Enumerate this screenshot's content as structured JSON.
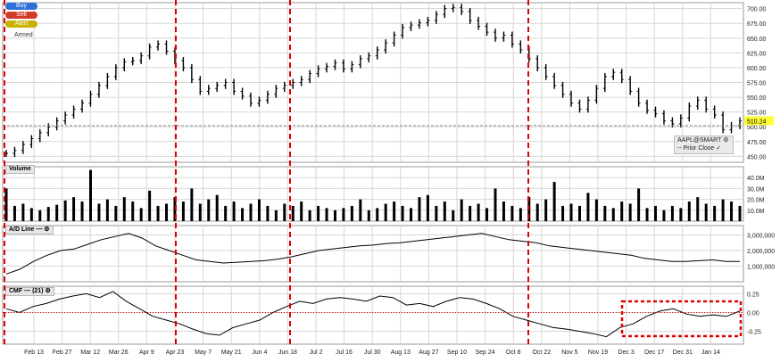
{
  "order_buttons": {
    "buy": "Buy",
    "sell": "Sell",
    "alert": "Alert",
    "armed": "Armed"
  },
  "colors": {
    "buy": "#2f6fd8",
    "sell": "#d23a2a",
    "alert": "#c9b200",
    "marker": "#e00000",
    "price_tag": "#ffff33"
  },
  "legend": {
    "symbol": "AAPL@SMART",
    "prior_close": "Prior Close"
  },
  "last_price_tag": "510.24",
  "chart_data": [
    {
      "type": "bar",
      "title": "",
      "symbol": "AAPL@SMART",
      "ylim": [
        440,
        710
      ],
      "yticks": [
        "700.00",
        "675.00",
        "650.00",
        "625.00",
        "600.00",
        "575.00",
        "550.00",
        "525.00",
        "500.00",
        "475.00",
        "450.00"
      ],
      "prior_close": 502,
      "last": 510.24,
      "x_labels": [
        "Feb 13",
        "Feb 27",
        "Mar 12",
        "Mar 26",
        "Apr 9",
        "Apr 23",
        "May 7",
        "May 21",
        "Jun 4",
        "Jun 18",
        "Jul 2",
        "Jul 16",
        "Jul 30",
        "Aug 13",
        "Aug 27",
        "Sep 10",
        "Sep 24",
        "Oct 8",
        "Oct 22",
        "Nov 5",
        "Nov 19",
        "Dec 3",
        "Dec 17",
        "Dec 31",
        "Jan 14"
      ],
      "close": [
        455,
        460,
        470,
        480,
        490,
        500,
        510,
        520,
        530,
        540,
        555,
        570,
        585,
        600,
        610,
        612,
        620,
        635,
        640,
        628,
        612,
        600,
        580,
        560,
        565,
        570,
        575,
        560,
        552,
        540,
        545,
        555,
        565,
        570,
        575,
        580,
        590,
        598,
        602,
        608,
        598,
        605,
        615,
        620,
        630,
        642,
        655,
        668,
        672,
        676,
        680,
        690,
        700,
        702,
        695,
        680,
        670,
        660,
        650,
        655,
        640,
        630,
        615,
        600,
        585,
        570,
        555,
        540,
        530,
        545,
        565,
        585,
        592,
        580,
        560,
        540,
        528,
        522,
        510,
        505,
        515,
        535,
        545,
        530,
        520,
        495,
        502,
        510
      ]
    },
    {
      "type": "bar",
      "title": "Volume",
      "yticks": [
        "40.0M",
        "30.0M",
        "20.0M",
        "10.0M"
      ],
      "ylim": [
        0,
        50
      ],
      "values": [
        30,
        14,
        16,
        12,
        10,
        13,
        15,
        19,
        22,
        18,
        47,
        16,
        20,
        14,
        22,
        18,
        12,
        28,
        14,
        16,
        22,
        18,
        30,
        16,
        20,
        24,
        14,
        18,
        12,
        16,
        20,
        14,
        10,
        16,
        14,
        18,
        10,
        14,
        12,
        10,
        12,
        14,
        20,
        10,
        12,
        16,
        18,
        14,
        12,
        22,
        24,
        14,
        18,
        10,
        20,
        14,
        16,
        12,
        30,
        18,
        14,
        12,
        22,
        16,
        20,
        36,
        14,
        16,
        14,
        26,
        20,
        14,
        12,
        18,
        16,
        30,
        12,
        14,
        10,
        14,
        12,
        18,
        22,
        16,
        14,
        20,
        18,
        14
      ]
    },
    {
      "type": "line",
      "title": "A/D Line",
      "yticks": [
        "3,000,000",
        "2,000,000",
        "1,000,000"
      ],
      "ylim": [
        0,
        3600000
      ],
      "values": [
        500000,
        800000,
        1300000,
        1700000,
        2000000,
        2100000,
        2400000,
        2700000,
        2900000,
        3100000,
        2800000,
        2300000,
        2000000,
        1700000,
        1400000,
        1300000,
        1200000,
        1250000,
        1300000,
        1350000,
        1450000,
        1600000,
        1800000,
        2000000,
        2100000,
        2200000,
        2300000,
        2350000,
        2450000,
        2500000,
        2600000,
        2700000,
        2800000,
        2900000,
        3000000,
        3100000,
        2900000,
        2700000,
        2600000,
        2500000,
        2300000,
        2200000,
        2100000,
        2000000,
        1900000,
        1800000,
        1700000,
        1500000,
        1400000,
        1300000,
        1300000,
        1350000,
        1400000,
        1300000,
        1300000
      ]
    },
    {
      "type": "line",
      "title": "CMF",
      "params": "(21)",
      "yticks": [
        "0.25",
        "0.00",
        "-0.25"
      ],
      "ylim": [
        -0.42,
        0.35
      ],
      "values": [
        0.05,
        0.0,
        0.08,
        0.12,
        0.18,
        0.22,
        0.25,
        0.2,
        0.28,
        0.15,
        0.05,
        -0.05,
        -0.1,
        -0.15,
        -0.22,
        -0.28,
        -0.3,
        -0.2,
        -0.15,
        -0.1,
        0.0,
        0.08,
        0.15,
        0.12,
        0.18,
        0.2,
        0.18,
        0.15,
        0.22,
        0.2,
        0.1,
        0.12,
        0.08,
        0.15,
        0.2,
        0.18,
        0.12,
        0.05,
        -0.05,
        -0.1,
        -0.15,
        -0.2,
        -0.22,
        -0.25,
        -0.28,
        -0.32,
        -0.2,
        -0.15,
        -0.05,
        0.02,
        0.05,
        -0.02,
        -0.05,
        -0.03,
        -0.05,
        0.02
      ]
    }
  ]
}
